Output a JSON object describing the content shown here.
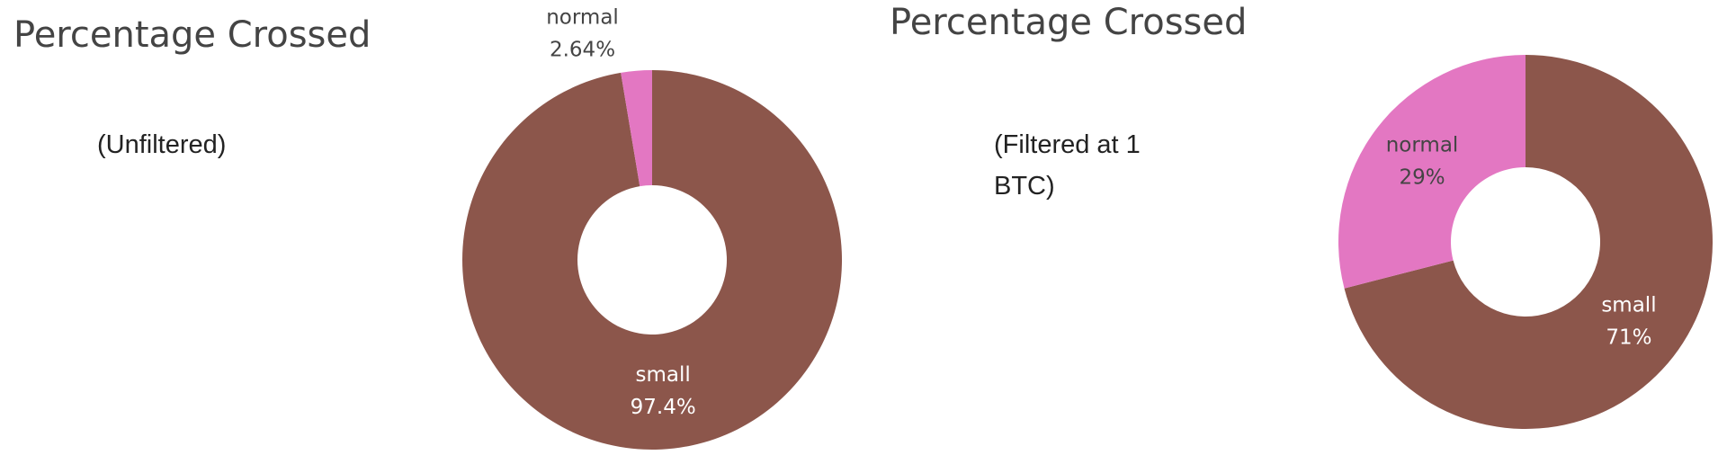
{
  "chart_data": [
    {
      "type": "pie",
      "title": "Percentage Crossed",
      "subtitle": "(Unfiltered)",
      "categories": [
        "small",
        "normal"
      ],
      "values": [
        97.4,
        2.64
      ],
      "value_labels": [
        "97.4%",
        "2.64%"
      ],
      "colors": [
        "#8c564b",
        "#e377c2"
      ],
      "hole": true
    },
    {
      "type": "pie",
      "title": "Percentage Crossed",
      "subtitle": "(Filtered at 1 BTC)",
      "categories": [
        "small",
        "normal"
      ],
      "values": [
        71,
        29
      ],
      "value_labels": [
        "71%",
        "29%"
      ],
      "colors": [
        "#8c564b",
        "#e377c2"
      ],
      "hole": true
    }
  ]
}
